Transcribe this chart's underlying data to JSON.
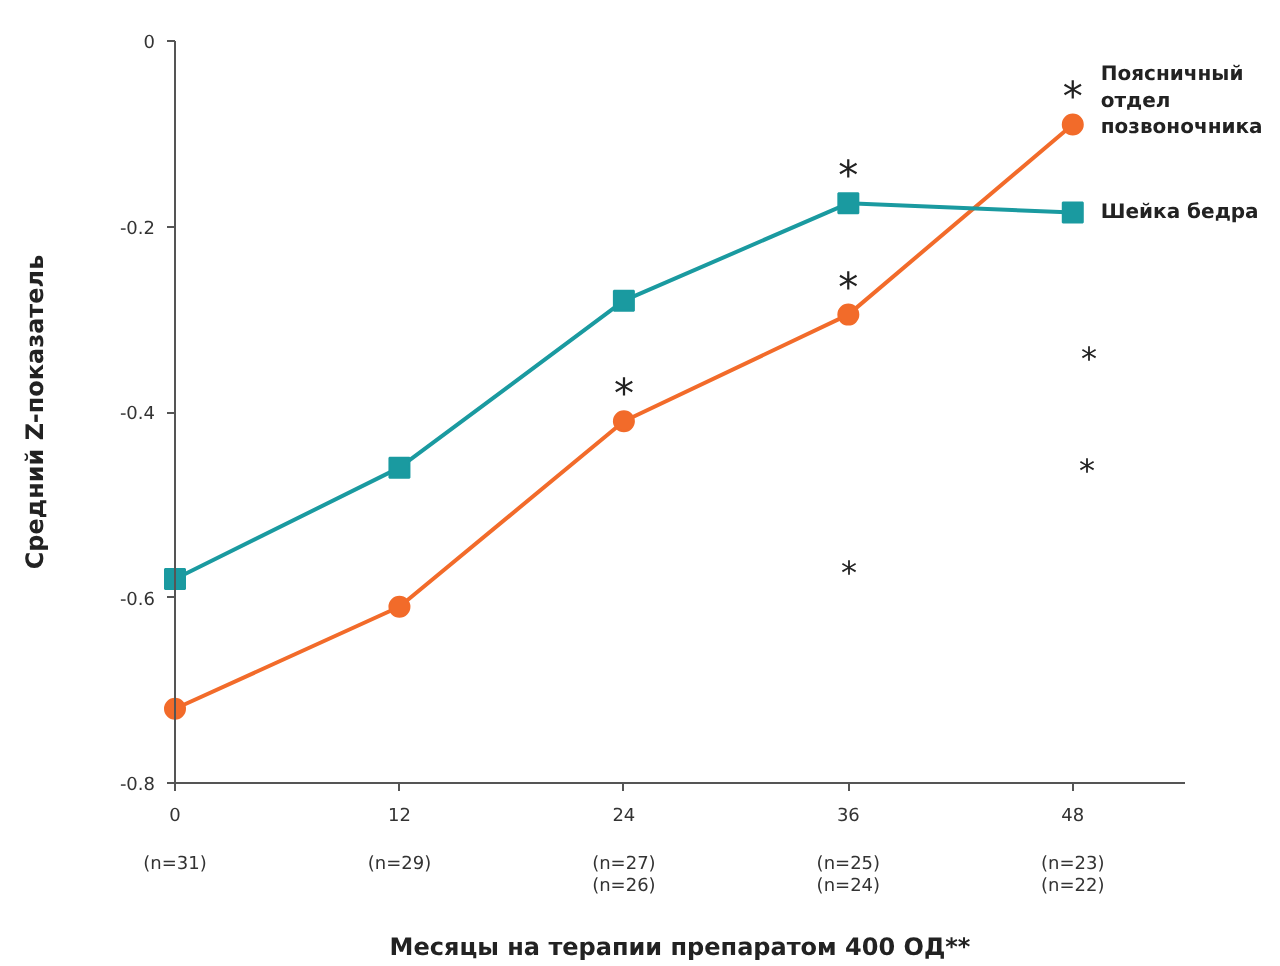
{
  "chart_data": {
    "type": "line",
    "xlabel": "Месяцы на терапии препаратом 400 ОД**",
    "ylabel": "Средний Z-показатель",
    "x": [
      0,
      12,
      24,
      36,
      48
    ],
    "series": [
      {
        "name": "Поясничный отдел позвоночника",
        "color": "#f26b2a",
        "marker": "circle",
        "values": [
          -0.72,
          -0.61,
          -0.41,
          -0.295,
          -0.09
        ]
      },
      {
        "name": "Шейка бедра",
        "color": "#1a9aa0",
        "marker": "square",
        "values": [
          -0.58,
          -0.46,
          -0.28,
          -0.175,
          -0.185
        ]
      }
    ],
    "xlim": [
      0,
      54
    ],
    "ylim": [
      -0.8,
      0
    ],
    "yticks": [
      0,
      -0.2,
      -0.4,
      -0.6,
      -0.8
    ],
    "xticks": [
      0,
      12,
      24,
      36,
      48
    ],
    "grid": false,
    "line_style": "solid",
    "annotations": [
      {
        "text": "*",
        "x": 24,
        "y": -0.41
      },
      {
        "text": "*",
        "x": 36,
        "y": -0.295
      },
      {
        "text": "*",
        "x": 36,
        "y": -0.175
      },
      {
        "text": "*",
        "x": 48,
        "y": -0.09
      },
      "(n=31)",
      "(n=29)",
      "(n=27)",
      "(n=26)",
      "(n=25)",
      "(n=24)",
      "(n=23)",
      "(n=22)",
      "*",
      "*",
      "*"
    ]
  }
}
